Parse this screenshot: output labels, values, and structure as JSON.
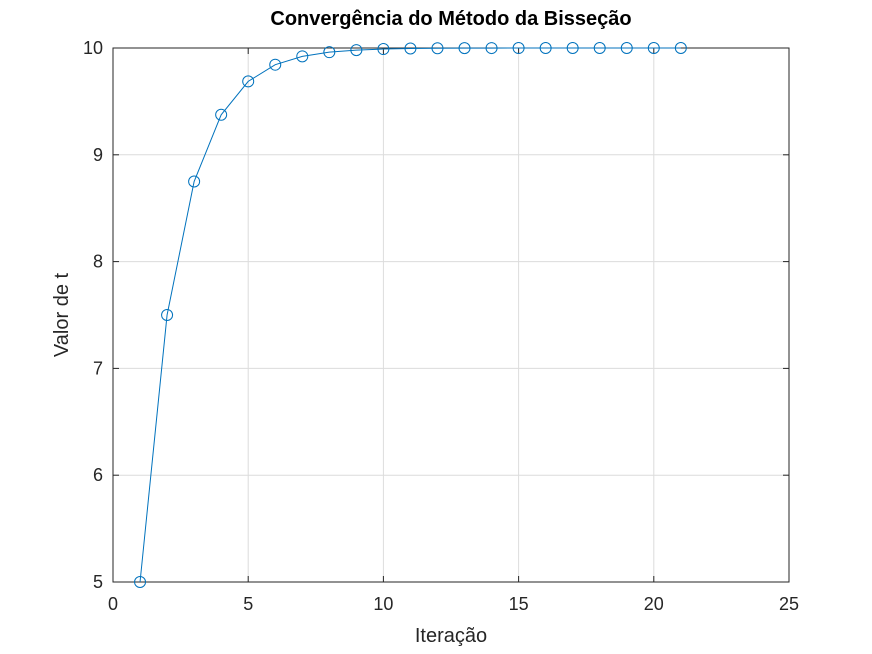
{
  "chart_data": {
    "type": "line",
    "title": "Convergência do Método da Bisseção",
    "xlabel": "Iteração",
    "ylabel": "Valor de t",
    "xlim": [
      0,
      25
    ],
    "ylim": [
      5,
      10
    ],
    "xticks": [
      0,
      5,
      10,
      15,
      20,
      25
    ],
    "yticks": [
      5,
      6,
      7,
      8,
      9,
      10
    ],
    "grid": true,
    "marker": "circle",
    "series": [
      {
        "color": "#0072BD",
        "x": [
          1,
          2,
          3,
          4,
          5,
          6,
          7,
          8,
          9,
          10,
          11,
          12,
          13,
          14,
          15,
          16,
          17,
          18,
          19,
          20,
          21
        ],
        "y": [
          5,
          7.5,
          8.75,
          9.375,
          9.6875,
          9.84375,
          9.921875,
          9.9609375,
          9.98046875,
          9.990234375,
          9.9951171875,
          9.99755859375,
          9.998779296875,
          9.9993896484375,
          9.99969482421875,
          9.999847412109375,
          9.999923706054688,
          9.999961853027344,
          9.999980926513672,
          9.999990463256836,
          9.999995231628418
        ]
      }
    ]
  }
}
